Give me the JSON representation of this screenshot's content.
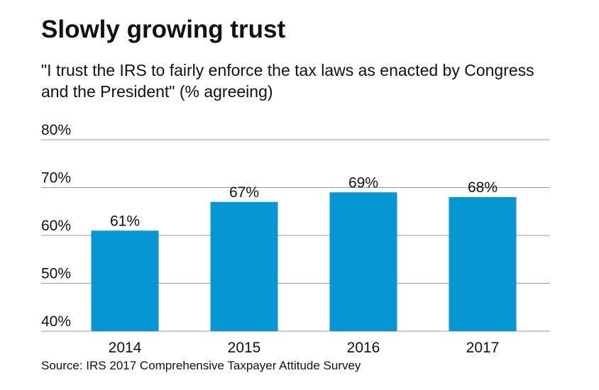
{
  "chart_data": {
    "type": "bar",
    "title": "Slowly growing trust",
    "subtitle": "\"I trust the IRS to fairly enforce the tax laws as enacted by Congress and the President\" (% agreeing)",
    "source": "Source: IRS 2017 Comprehensive Taxpayer Attitude Survey",
    "categories": [
      "2014",
      "2015",
      "2016",
      "2017"
    ],
    "values": [
      61,
      67,
      69,
      68
    ],
    "value_labels": [
      "61%",
      "67%",
      "69%",
      "68%"
    ],
    "color": "#0596d4",
    "ylim": [
      40,
      80
    ],
    "yticks": [
      {
        "value": 40,
        "label": "40%"
      },
      {
        "value": 50,
        "label": "50%"
      },
      {
        "value": 60,
        "label": "60%"
      },
      {
        "value": 70,
        "label": "70%"
      },
      {
        "value": 80,
        "label": "80%"
      }
    ],
    "grid": true
  }
}
